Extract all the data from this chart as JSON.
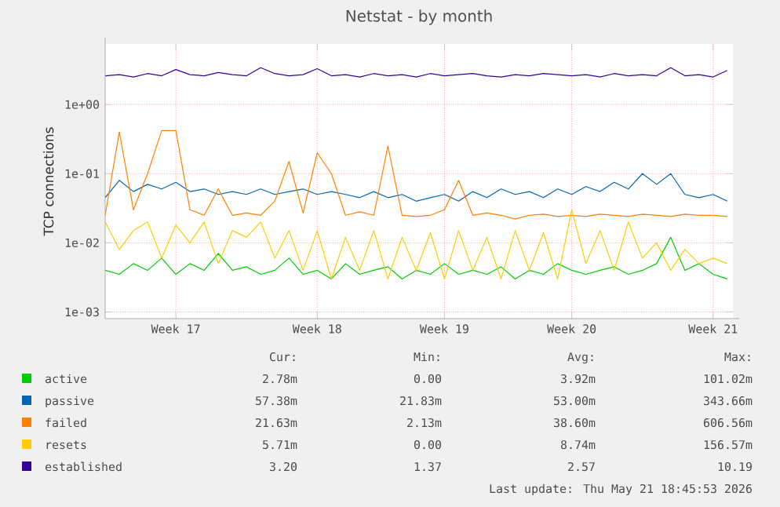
{
  "chart_data": {
    "type": "line",
    "title": "Netstat - by month",
    "ylabel": "TCP connections",
    "categories": [
      null,
      null,
      null,
      null,
      null,
      "Week 17",
      null,
      null,
      null,
      null,
      null,
      null,
      null,
      null,
      null,
      "Week 18",
      null,
      null,
      null,
      null,
      null,
      null,
      null,
      null,
      "Week 19",
      null,
      null,
      null,
      null,
      null,
      null,
      null,
      null,
      "Week 20",
      null,
      null,
      null,
      null,
      null,
      null,
      null,
      null,
      null,
      "Week 21",
      null
    ],
    "series": [
      {
        "name": "active",
        "color": "#00cc00",
        "values": [
          0.004,
          0.0035,
          0.005,
          0.004,
          0.006,
          0.0035,
          0.005,
          0.004,
          0.007,
          0.004,
          0.0045,
          0.0035,
          0.004,
          0.006,
          0.0035,
          0.004,
          0.003,
          0.005,
          0.0035,
          0.004,
          0.0045,
          0.003,
          0.004,
          0.0035,
          0.005,
          0.0035,
          0.004,
          0.0035,
          0.0045,
          0.003,
          0.004,
          0.0035,
          0.005,
          0.004,
          0.0035,
          0.004,
          0.0045,
          0.0035,
          0.004,
          0.005,
          0.012,
          0.004,
          0.005,
          0.0035,
          0.003
        ]
      },
      {
        "name": "passive",
        "color": "#0066b3",
        "values": [
          0.045,
          0.08,
          0.055,
          0.07,
          0.06,
          0.075,
          0.055,
          0.06,
          0.05,
          0.055,
          0.05,
          0.06,
          0.05,
          0.055,
          0.06,
          0.05,
          0.055,
          0.05,
          0.045,
          0.055,
          0.045,
          0.05,
          0.04,
          0.045,
          0.05,
          0.04,
          0.055,
          0.045,
          0.06,
          0.05,
          0.055,
          0.045,
          0.06,
          0.05,
          0.065,
          0.055,
          0.075,
          0.06,
          0.1,
          0.07,
          0.1,
          0.05,
          0.045,
          0.05,
          0.04
        ]
      },
      {
        "name": "failed",
        "color": "#ff8000",
        "values": [
          0.025,
          0.4,
          0.03,
          0.1,
          0.42,
          0.42,
          0.03,
          0.025,
          0.06,
          0.025,
          0.027,
          0.025,
          0.04,
          0.15,
          0.027,
          0.2,
          0.1,
          0.025,
          0.028,
          0.025,
          0.25,
          0.025,
          0.024,
          0.025,
          0.03,
          0.08,
          0.025,
          0.027,
          0.025,
          0.022,
          0.025,
          0.026,
          0.024,
          0.025,
          0.024,
          0.026,
          0.025,
          0.024,
          0.026,
          0.025,
          0.024,
          0.026,
          0.025,
          0.025,
          0.024
        ]
      },
      {
        "name": "resets",
        "color": "#ffcc00",
        "values": [
          0.02,
          0.008,
          0.015,
          0.02,
          0.006,
          0.018,
          0.01,
          0.02,
          0.005,
          0.015,
          0.012,
          0.02,
          0.006,
          0.015,
          0.004,
          0.015,
          0.003,
          0.012,
          0.004,
          0.015,
          0.003,
          0.012,
          0.004,
          0.014,
          0.003,
          0.015,
          0.004,
          0.012,
          0.003,
          0.015,
          0.004,
          0.014,
          0.003,
          0.03,
          0.005,
          0.015,
          0.004,
          0.02,
          0.006,
          0.01,
          0.004,
          0.008,
          0.005,
          0.006,
          0.005
        ]
      },
      {
        "name": "established",
        "color": "#330099",
        "values": [
          2.6,
          2.7,
          2.5,
          2.8,
          2.6,
          3.2,
          2.7,
          2.6,
          2.9,
          2.7,
          2.6,
          3.4,
          2.8,
          2.6,
          2.7,
          3.3,
          2.6,
          2.7,
          2.5,
          2.8,
          2.6,
          2.7,
          2.5,
          2.8,
          2.6,
          2.7,
          2.8,
          2.6,
          2.5,
          2.7,
          2.6,
          2.8,
          2.7,
          2.6,
          2.7,
          2.5,
          2.8,
          2.6,
          2.7,
          2.6,
          3.4,
          2.6,
          2.7,
          2.5,
          3.1
        ]
      }
    ],
    "ylim": [
      0.0008,
      7.5
    ],
    "yticks": [
      {
        "value": 0.001,
        "label": "1e-03"
      },
      {
        "value": 0.01,
        "label": "1e-02"
      },
      {
        "value": 0.1,
        "label": "1e-01"
      },
      {
        "value": 1,
        "label": "1e+00"
      }
    ],
    "log": "y",
    "grid": true,
    "legend": "bottom",
    "marker": "none",
    "line_style": "solid",
    "annotations": [
      "Cur:",
      "Min:",
      "Avg:",
      "Max:",
      "2.78m",
      "0.00",
      "3.92m",
      "101.02m",
      "57.38m",
      "21.83m",
      "53.00m",
      "343.66m",
      "21.63m",
      "2.13m",
      "38.60m",
      "606.56m",
      "5.71m",
      "0.00",
      "8.74m",
      "156.57m",
      "3.20",
      "1.37",
      "2.57",
      "10.19",
      "Last update: Thu May 21 18:45:53 2026"
    ]
  }
}
